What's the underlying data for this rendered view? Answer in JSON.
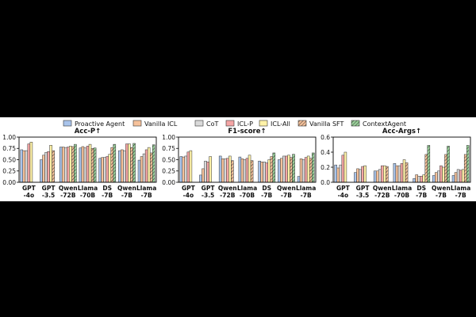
{
  "legend": [
    {
      "name": "Proactive Agent",
      "color": "#a9c4eb",
      "hatch": false
    },
    {
      "name": "Vanilla ICL",
      "color": "#f6c29b",
      "hatch": false
    },
    {
      "name": "CoT",
      "color": "#d9d9d9",
      "hatch": false
    },
    {
      "name": "ICL-P",
      "color": "#f4a5a5",
      "hatch": false
    },
    {
      "name": "ICL-All",
      "color": "#fff2a8",
      "hatch": false
    },
    {
      "name": "Vanilla SFT",
      "color": "#f6c29b",
      "hatch": true
    },
    {
      "name": "ContextAgent",
      "color": "#9ad19a",
      "hatch": true
    }
  ],
  "chart_data": [
    {
      "type": "bar",
      "title": "Acc-P↑",
      "categories": [
        "GPT\n-4o",
        "GPT\n-3.5",
        "Qwen\n-72B",
        "Llama\n-70B",
        "DS\n-7B",
        "Qwen\n-7B",
        "Llama\n-7B"
      ],
      "ylim": [
        0,
        1
      ],
      "yticks": [
        "0.00",
        "0.25",
        "0.50",
        "0.75",
        "1.00"
      ],
      "series": [
        {
          "name": "Proactive Agent",
          "values": [
            0.72,
            0.5,
            0.78,
            0.76,
            0.53,
            0.7,
            0.49
          ]
        },
        {
          "name": "Vanilla ICL",
          "values": [
            0.7,
            0.6,
            0.78,
            0.79,
            0.55,
            0.72,
            0.57
          ]
        },
        {
          "name": "CoT",
          "values": [
            0.7,
            0.66,
            0.77,
            0.76,
            0.55,
            0.7,
            0.63
          ]
        },
        {
          "name": "ICL-P",
          "values": [
            0.85,
            0.68,
            0.78,
            0.8,
            0.57,
            0.85,
            0.72
          ]
        },
        {
          "name": "ICL-All",
          "values": [
            0.89,
            0.82,
            0.8,
            0.84,
            0.62,
            0.85,
            0.77
          ]
        },
        {
          "name": "Vanilla SFT",
          "values": [
            null,
            0.7,
            0.79,
            0.75,
            0.77,
            0.77,
            0.65
          ]
        },
        {
          "name": "ContextAgent",
          "values": [
            null,
            null,
            0.84,
            0.76,
            0.84,
            0.86,
            0.83
          ]
        }
      ]
    },
    {
      "type": "bar",
      "title": "F1-score↑",
      "categories": [
        "GPT\n-4o",
        "GPT\n-3.5",
        "Qwen\n-72B",
        "Llama\n-70B",
        "DS\n-7B",
        "Qwen\n-7B",
        "Llama\n-7B"
      ],
      "ylim": [
        0,
        1
      ],
      "yticks": [
        "0.00",
        "0.25",
        "0.50",
        "0.75",
        "1.00"
      ],
      "series": [
        {
          "name": "Proactive Agent",
          "values": [
            0.57,
            0.16,
            0.58,
            0.56,
            0.47,
            0.5,
            0.13
          ]
        },
        {
          "name": "Vanilla ICL",
          "values": [
            0.56,
            0.3,
            0.52,
            0.52,
            0.45,
            0.53,
            0.52
          ]
        },
        {
          "name": "CoT",
          "values": [
            0.58,
            0.47,
            0.52,
            0.5,
            0.45,
            0.58,
            0.5
          ]
        },
        {
          "name": "ICL-P",
          "values": [
            0.67,
            0.45,
            0.53,
            0.53,
            0.43,
            0.58,
            0.55
          ]
        },
        {
          "name": "ICL-All",
          "values": [
            0.7,
            0.57,
            0.58,
            0.6,
            0.5,
            0.6,
            0.58
          ]
        },
        {
          "name": "Vanilla SFT",
          "values": [
            null,
            null,
            0.48,
            0.48,
            0.57,
            0.55,
            0.53
          ]
        },
        {
          "name": "ContextAgent",
          "values": [
            null,
            null,
            null,
            null,
            0.65,
            0.62,
            0.65
          ]
        }
      ]
    },
    {
      "type": "bar",
      "title": "Acc-Args↑",
      "categories": [
        "GPT\n-4o",
        "GPT\n-3.5",
        "Qwen\n-72B",
        "Llama\n-70B",
        "DS\n-7B",
        "Qwen\n-7B",
        "Llama\n-7B"
      ],
      "ylim": [
        0,
        0.6
      ],
      "yticks": [
        "0.0",
        "0.2",
        "0.4",
        "0.6"
      ],
      "series": [
        {
          "name": "Proactive Agent",
          "values": [
            0.23,
            0.13,
            0.15,
            0.25,
            0.05,
            0.09,
            0.09
          ]
        },
        {
          "name": "Vanilla ICL",
          "values": [
            0.19,
            0.18,
            0.15,
            0.22,
            0.1,
            0.13,
            0.13
          ]
        },
        {
          "name": "CoT",
          "values": [
            0.23,
            0.17,
            0.17,
            0.22,
            0.08,
            0.15,
            0.17
          ]
        },
        {
          "name": "ICL-P",
          "values": [
            0.36,
            0.21,
            0.22,
            0.25,
            0.08,
            0.22,
            0.16
          ]
        },
        {
          "name": "ICL-All",
          "values": [
            0.4,
            0.22,
            0.22,
            0.3,
            0.1,
            0.2,
            0.17
          ]
        },
        {
          "name": "Vanilla SFT",
          "values": [
            null,
            null,
            0.21,
            0.26,
            0.37,
            0.37,
            0.37
          ]
        },
        {
          "name": "ContextAgent",
          "values": [
            null,
            null,
            null,
            null,
            0.49,
            0.48,
            0.49
          ]
        }
      ]
    }
  ]
}
